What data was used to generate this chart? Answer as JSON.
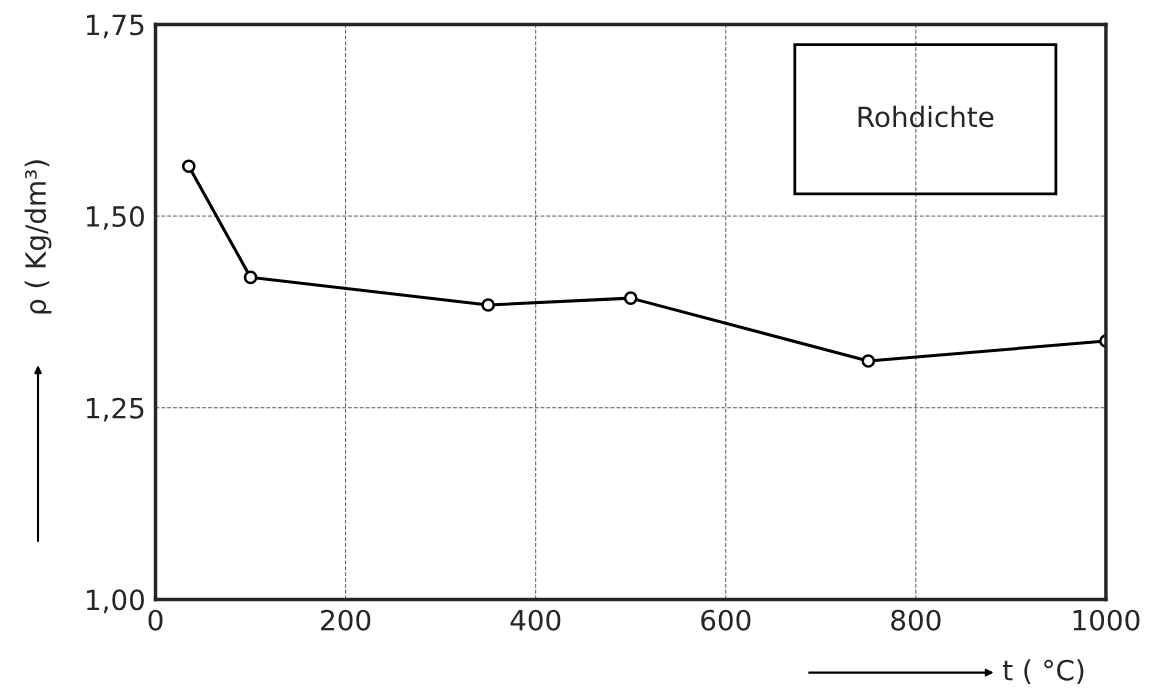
{
  "chart_data": {
    "type": "line",
    "xlabel": "t ( °C)",
    "ylabel": "ρ ( Kg/dm³)",
    "x": [
      35,
      100,
      350,
      500,
      750,
      1000
    ],
    "series": [
      {
        "color": "#000000",
        "values": [
          1.565,
          1.42,
          1.384,
          1.393,
          1.311,
          1.337
        ]
      }
    ],
    "xlim": [
      0,
      1000
    ],
    "xticks": [
      0,
      200,
      400,
      600,
      800,
      1000
    ],
    "ylim": [
      1.0,
      1.75
    ],
    "yticks": [
      {
        "value": 1.0,
        "label": "1,00"
      },
      {
        "value": 1.25,
        "label": "1,25"
      },
      {
        "value": 1.5,
        "label": "1,50"
      },
      {
        "value": 1.75,
        "label": "1,75"
      }
    ],
    "annotations": [
      "Rohdichte"
    ],
    "grid": true,
    "marker": "circle",
    "line_style": "solid"
  }
}
